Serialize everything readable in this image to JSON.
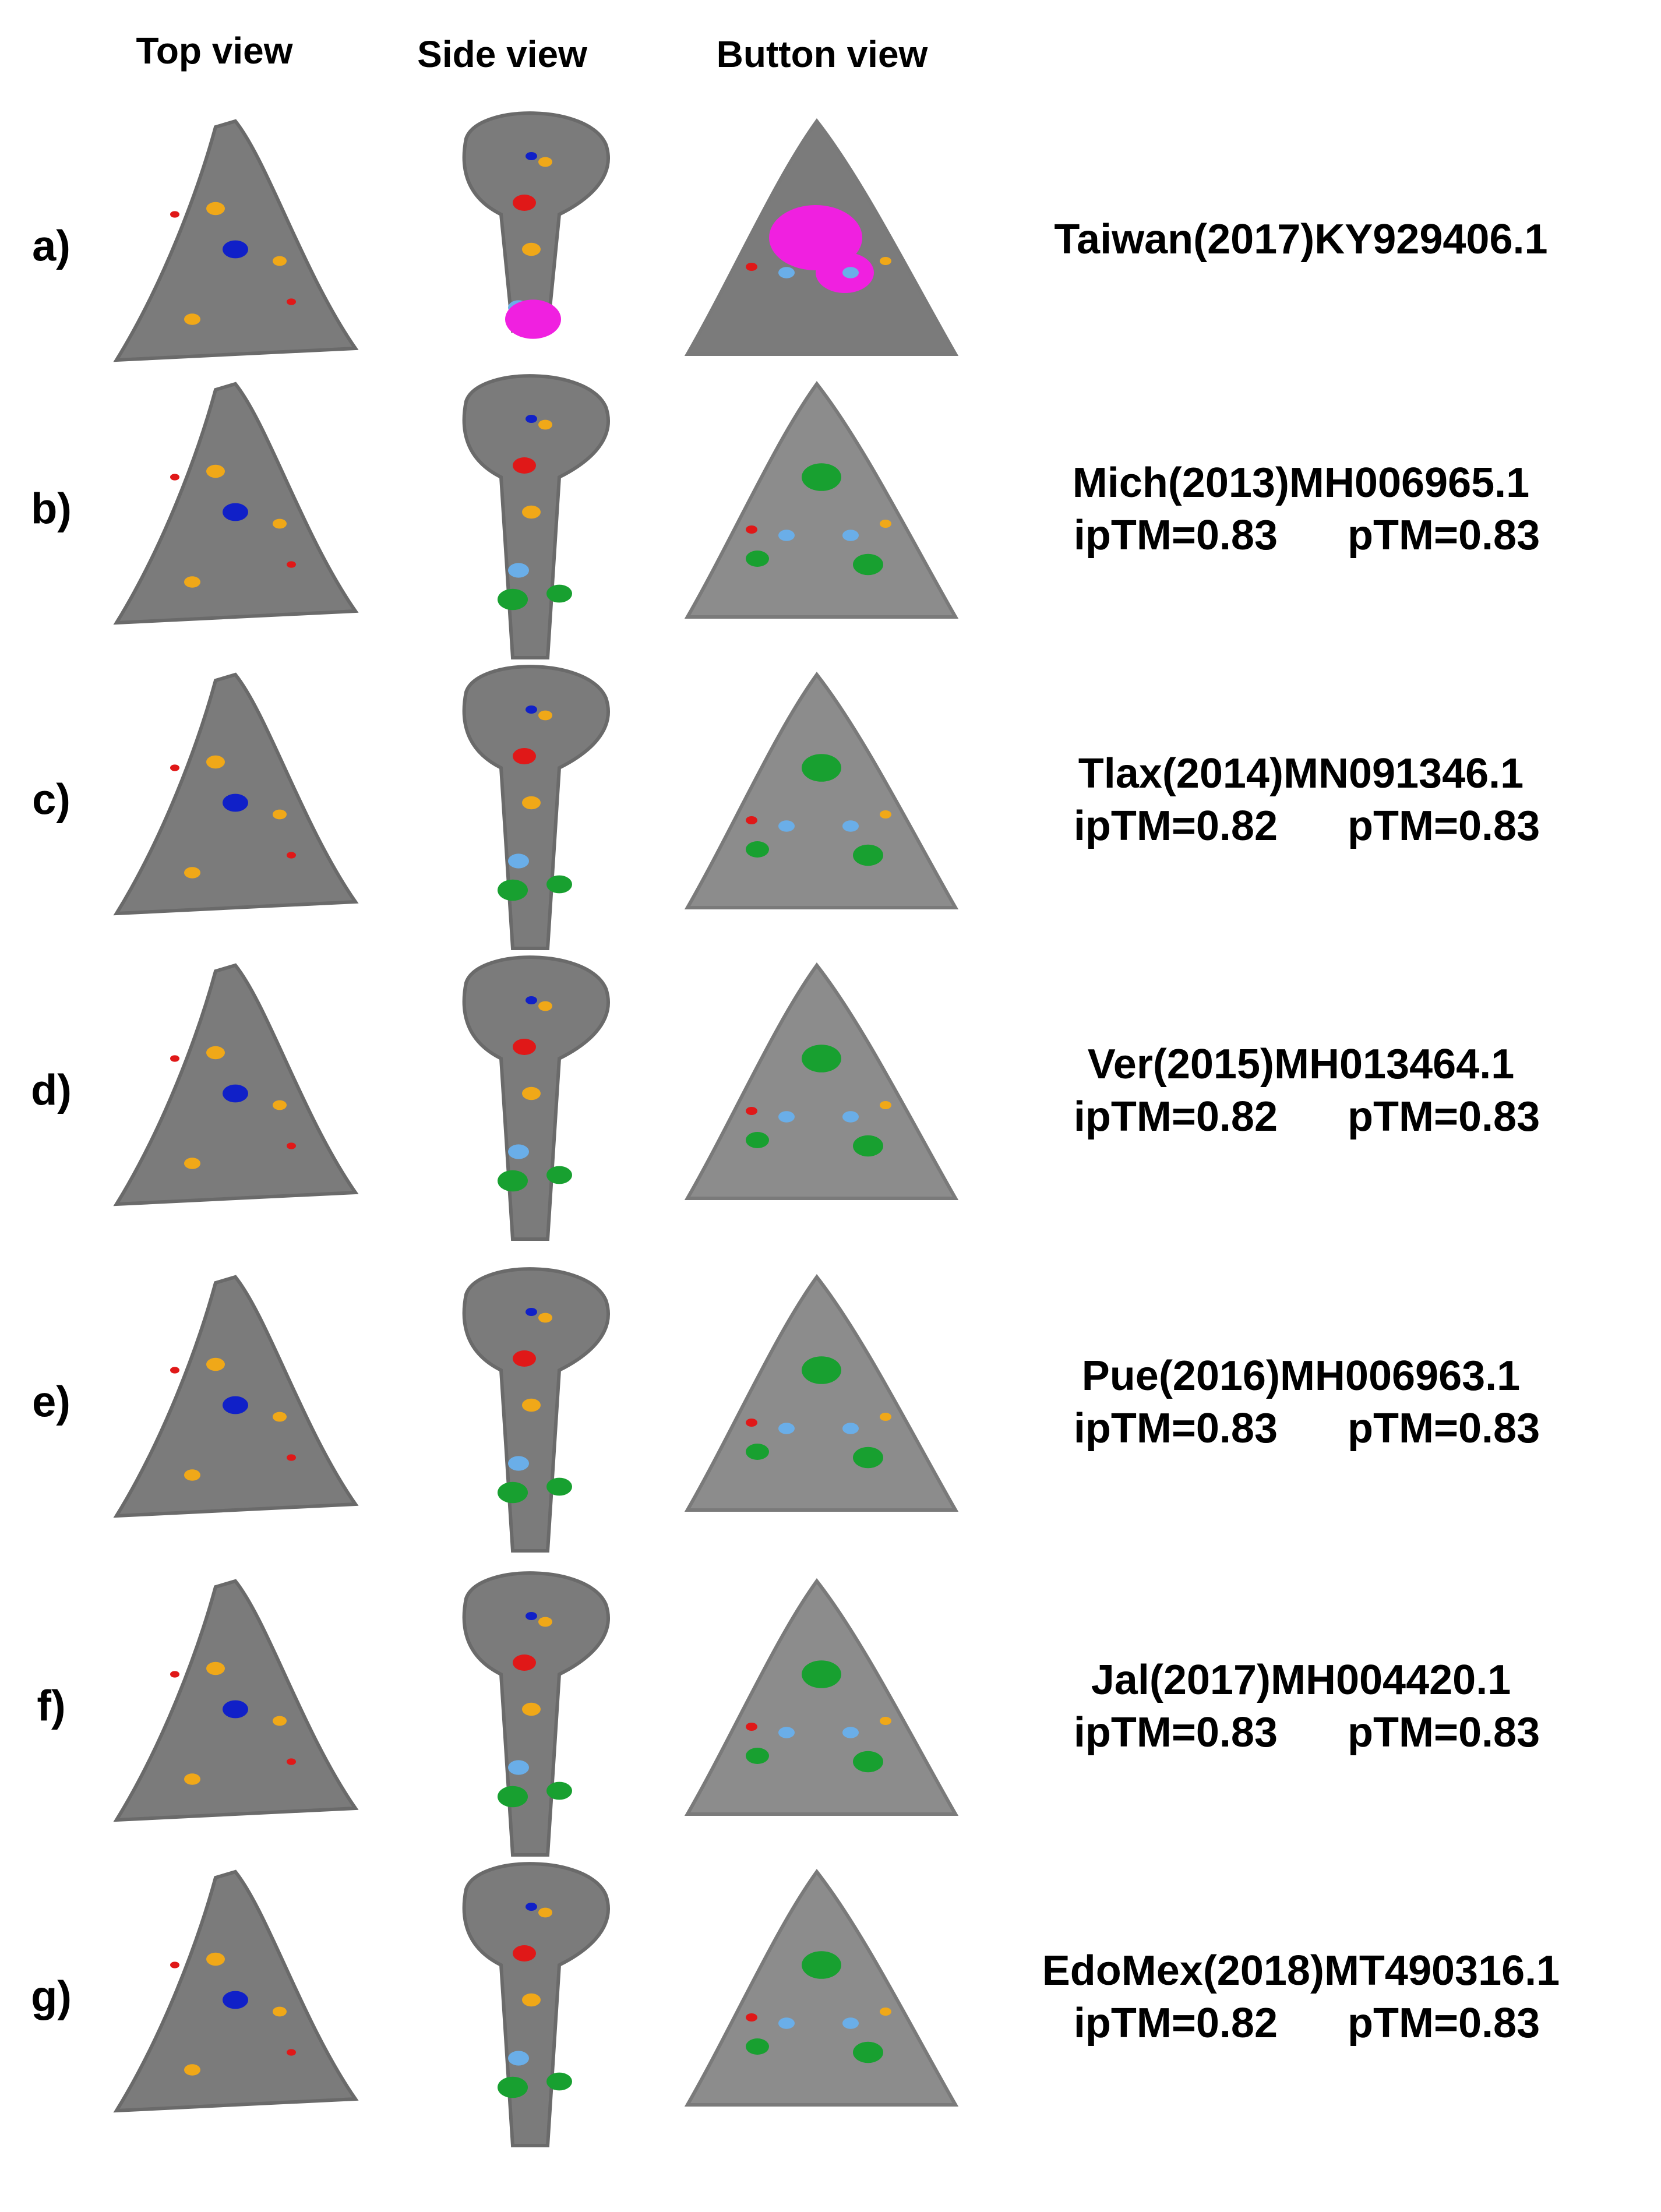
{
  "headers": [
    "Top view",
    "Side view",
    "Button view"
  ],
  "rows": [
    {
      "label": "a)",
      "strain": "Taiwan(2017)KY929406.1"
    },
    {
      "label": "b)",
      "strain": "Mich(2013)MH006965.1",
      "iptm": "ipTM=0.83",
      "ptm": "pTM=0.83"
    },
    {
      "label": "c)",
      "strain": "Tlax(2014)MN091346.1",
      "iptm": "ipTM=0.82",
      "ptm": "pTM=0.83"
    },
    {
      "label": "d)",
      "strain": "Ver(2015)MH013464.1",
      "iptm": "ipTM=0.82",
      "ptm": "pTM=0.83"
    },
    {
      "label": "e)",
      "strain": "Pue(2016)MH006963.1",
      "iptm": "ipTM=0.83",
      "ptm": "pTM=0.83"
    },
    {
      "label": "f)",
      "strain": "Jal(2017)MH004420.1",
      "iptm": "ipTM=0.83",
      "ptm": "pTM=0.83"
    },
    {
      "label": "g)",
      "strain": "EdoMex(2018)MT490316.1",
      "iptm": "ipTM=0.82",
      "ptm": "pTM=0.83"
    }
  ]
}
